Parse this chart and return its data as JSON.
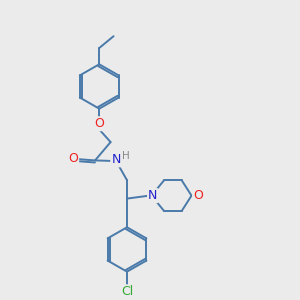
{
  "background_color": "#ebebeb",
  "bond_color": "#4a7aaa",
  "atom_colors": {
    "O": "#ee2222",
    "N": "#2222cc",
    "Cl": "#33aa33",
    "H": "#888888"
  },
  "lw": 1.4,
  "fs": 8.5,
  "xlim": [
    0,
    10
  ],
  "ylim": [
    0,
    10
  ]
}
